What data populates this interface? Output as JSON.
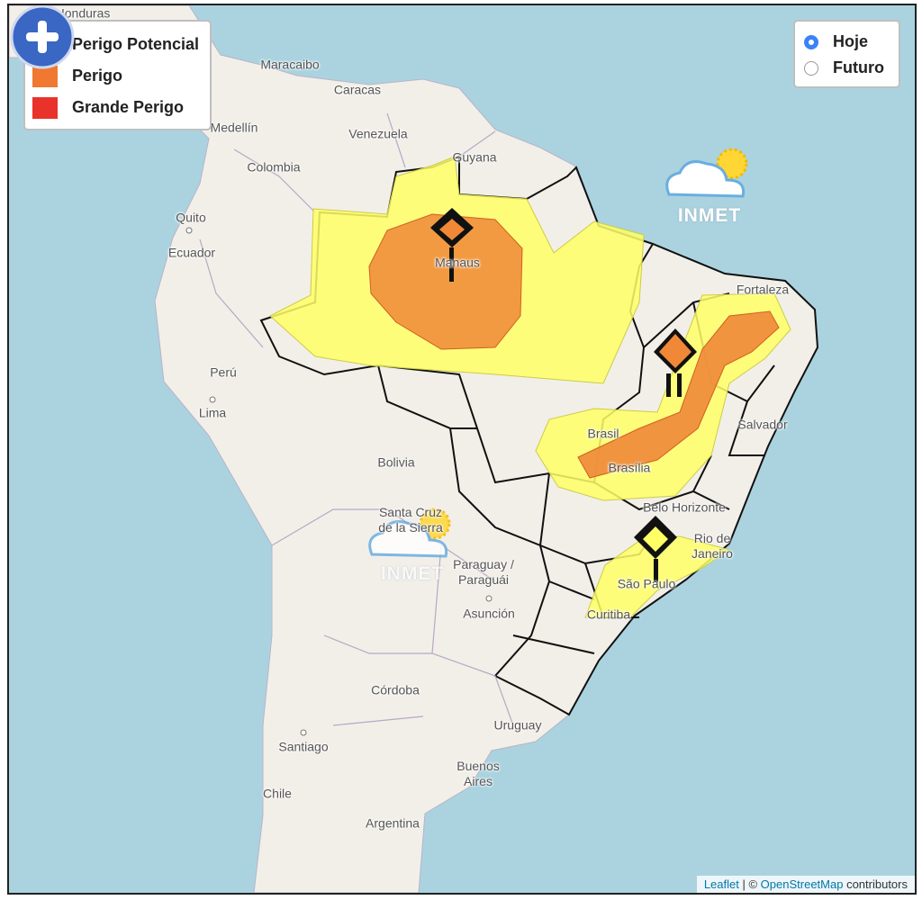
{
  "legend": {
    "items": [
      {
        "label": "Perigo Potencial",
        "color": "#ffff44"
      },
      {
        "label": "Perigo",
        "color": "#f07830"
      },
      {
        "label": "Grande Perigo",
        "color": "#e8322a"
      }
    ]
  },
  "time_options": [
    {
      "label": "Hoje",
      "checked": true
    },
    {
      "label": "Futuro",
      "checked": false
    }
  ],
  "places": [
    "Honduras",
    "Maracaibo",
    "Caracas",
    "Medellín",
    "Venezuela",
    "Guyana",
    "Colombia",
    "Quito",
    "Ecuador",
    "Manaus",
    "Fortaleza",
    "Perú",
    "Lima",
    "Salvador",
    "Brasil",
    "Brasília",
    "Bolivia",
    "Santa Cruz de la Sierra",
    "Belo Horizonte",
    "Rio de Janeiro",
    "São Paulo",
    "Paraguay / Paraguái",
    "Asunción",
    "Curitiba",
    "Córdoba",
    "Uruguay",
    "Santiago",
    "Buenos Aires",
    "Chile",
    "Argentina"
  ],
  "watermarks": [
    "INMET",
    "INMET"
  ],
  "attribution": {
    "leaflet": "Leaflet",
    "separator": " | © ",
    "osm": "OpenStreetMap",
    "suffix": " contributors"
  }
}
